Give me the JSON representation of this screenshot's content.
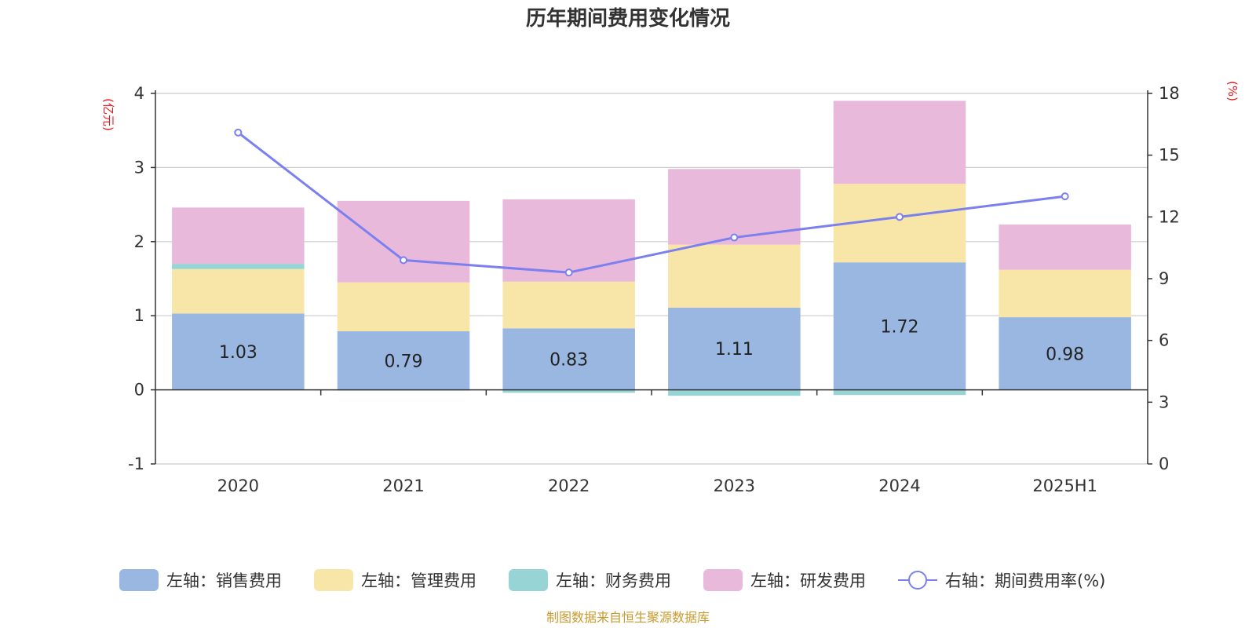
{
  "chart_data": {
    "type": "bar",
    "title": "历年期间费用变化情况",
    "categories": [
      "2020",
      "2021",
      "2022",
      "2023",
      "2024",
      "2025H1"
    ],
    "left_axis": {
      "unit": "(亿元)",
      "ylim": [
        -1,
        4
      ],
      "ticks": [
        "-1",
        "0",
        "1",
        "2",
        "3",
        "4"
      ]
    },
    "right_axis": {
      "unit": "(%)",
      "ylim": [
        0,
        18
      ],
      "ticks": [
        "0",
        "3",
        "6",
        "9",
        "12",
        "15",
        "18"
      ]
    },
    "series": [
      {
        "name": "左轴：销售费用",
        "type": "bar",
        "axis": "left",
        "color": "#9ab7e2",
        "values": [
          1.03,
          0.79,
          0.83,
          1.11,
          1.72,
          0.98
        ],
        "labels": [
          "1.03",
          "0.79",
          "0.83",
          "1.11",
          "1.72",
          "0.98"
        ]
      },
      {
        "name": "左轴：管理费用",
        "type": "bar",
        "axis": "left",
        "color": "#f8e6a8",
        "values": [
          0.6,
          0.66,
          0.63,
          0.85,
          1.06,
          0.64
        ]
      },
      {
        "name": "左轴：财务费用",
        "type": "bar",
        "axis": "left",
        "color": "#97d4d6",
        "values": [
          0.07,
          -0.01,
          -0.04,
          -0.08,
          -0.07,
          0.0
        ]
      },
      {
        "name": "左轴：研发费用",
        "type": "bar",
        "axis": "left",
        "color": "#e8b9da",
        "values": [
          0.76,
          1.1,
          1.11,
          1.02,
          1.12,
          0.61
        ]
      },
      {
        "name": "右轴：期间费用率(%)",
        "type": "line",
        "axis": "right",
        "color": "#7b80ee",
        "values": [
          16.1,
          9.9,
          9.3,
          11.0,
          12.0,
          13.0
        ]
      }
    ],
    "grid": true,
    "legend_position": "bottom",
    "source_note": "制图数据来自恒生聚源数据库"
  }
}
